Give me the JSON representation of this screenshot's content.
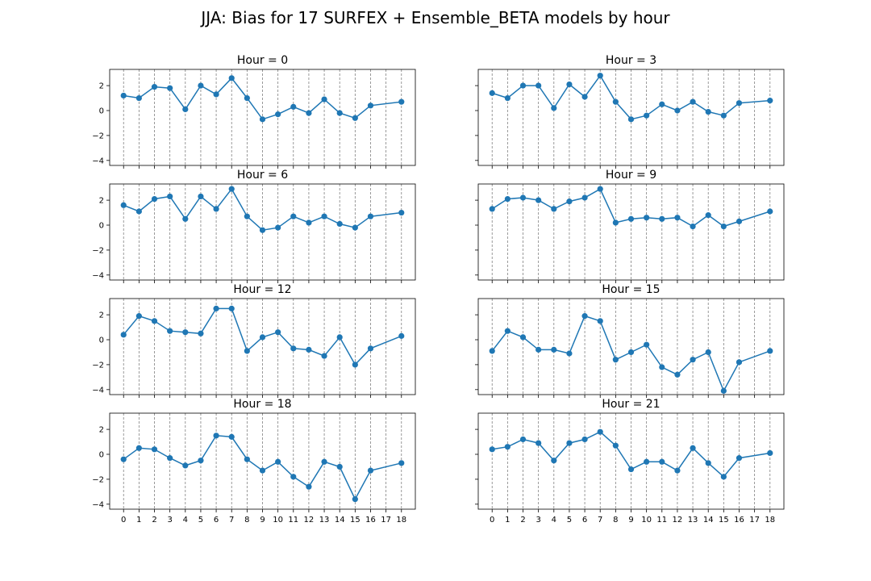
{
  "figure": {
    "title": "JJA: Bias for 17 SURFEX + Ensemble_BETA models by hour",
    "line_color": "#1f77b4",
    "vgrid_color": "#808080"
  },
  "chart_data": [
    {
      "type": "line",
      "title": "Hour = 0",
      "x": [
        0,
        1,
        2,
        3,
        4,
        5,
        6,
        7,
        8,
        9,
        10,
        11,
        12,
        13,
        14,
        15,
        16,
        18
      ],
      "values": [
        1.2,
        1.0,
        1.9,
        1.8,
        0.1,
        2.0,
        1.3,
        2.6,
        1.0,
        -0.7,
        -0.3,
        0.3,
        -0.2,
        0.9,
        -0.2,
        -0.6,
        0.4,
        0.7
      ],
      "xticks": [
        0,
        1,
        2,
        3,
        4,
        5,
        6,
        7,
        8,
        9,
        10,
        11,
        12,
        13,
        14,
        15,
        16,
        17,
        18
      ],
      "yticks": [
        -4,
        -2,
        0,
        2
      ],
      "xlim": [
        -0.9,
        18.9
      ],
      "ylim": [
        -4.4,
        3.3
      ],
      "grid": "vertical dashed at each x tick",
      "show_xticklabels": false,
      "show_yticklabels": true
    },
    {
      "type": "line",
      "title": "Hour = 3",
      "x": [
        0,
        1,
        2,
        3,
        4,
        5,
        6,
        7,
        8,
        9,
        10,
        11,
        12,
        13,
        14,
        15,
        16,
        18
      ],
      "values": [
        1.4,
        1.0,
        2.0,
        2.0,
        0.2,
        2.1,
        1.1,
        2.8,
        0.7,
        -0.7,
        -0.4,
        0.5,
        0.0,
        0.7,
        -0.1,
        -0.4,
        0.6,
        0.8
      ],
      "xticks": [
        0,
        1,
        2,
        3,
        4,
        5,
        6,
        7,
        8,
        9,
        10,
        11,
        12,
        13,
        14,
        15,
        16,
        17,
        18
      ],
      "yticks": [
        -4,
        -2,
        0,
        2
      ],
      "xlim": [
        -0.9,
        18.9
      ],
      "ylim": [
        -4.4,
        3.3
      ],
      "grid": "vertical dashed at each x tick",
      "show_xticklabels": false,
      "show_yticklabels": false
    },
    {
      "type": "line",
      "title": "Hour = 6",
      "x": [
        0,
        1,
        2,
        3,
        4,
        5,
        6,
        7,
        8,
        9,
        10,
        11,
        12,
        13,
        14,
        15,
        16,
        18
      ],
      "values": [
        1.6,
        1.1,
        2.1,
        2.3,
        0.5,
        2.3,
        1.3,
        2.9,
        0.7,
        -0.4,
        -0.2,
        0.7,
        0.2,
        0.7,
        0.1,
        -0.2,
        0.7,
        1.0
      ],
      "xticks": [
        0,
        1,
        2,
        3,
        4,
        5,
        6,
        7,
        8,
        9,
        10,
        11,
        12,
        13,
        14,
        15,
        16,
        17,
        18
      ],
      "yticks": [
        -4,
        -2,
        0,
        2
      ],
      "xlim": [
        -0.9,
        18.9
      ],
      "ylim": [
        -4.4,
        3.3
      ],
      "grid": "vertical dashed at each x tick",
      "show_xticklabels": false,
      "show_yticklabels": true
    },
    {
      "type": "line",
      "title": "Hour = 9",
      "x": [
        0,
        1,
        2,
        3,
        4,
        5,
        6,
        7,
        8,
        9,
        10,
        11,
        12,
        13,
        14,
        15,
        16,
        18
      ],
      "values": [
        1.3,
        2.1,
        2.2,
        2.0,
        1.3,
        1.9,
        2.2,
        2.9,
        0.2,
        0.5,
        0.6,
        0.5,
        0.6,
        -0.1,
        0.8,
        -0.1,
        0.3,
        1.1
      ],
      "xticks": [
        0,
        1,
        2,
        3,
        4,
        5,
        6,
        7,
        8,
        9,
        10,
        11,
        12,
        13,
        14,
        15,
        16,
        17,
        18
      ],
      "yticks": [
        -4,
        -2,
        0,
        2
      ],
      "xlim": [
        -0.9,
        18.9
      ],
      "ylim": [
        -4.4,
        3.3
      ],
      "grid": "vertical dashed at each x tick",
      "show_xticklabels": false,
      "show_yticklabels": false
    },
    {
      "type": "line",
      "title": "Hour = 12",
      "x": [
        0,
        1,
        2,
        3,
        4,
        5,
        6,
        7,
        8,
        9,
        10,
        11,
        12,
        13,
        14,
        15,
        16,
        18
      ],
      "values": [
        0.4,
        1.9,
        1.5,
        0.7,
        0.6,
        0.5,
        2.5,
        2.5,
        -0.9,
        0.2,
        0.6,
        -0.7,
        -0.8,
        -1.3,
        0.2,
        -2.0,
        -0.7,
        0.3
      ],
      "xticks": [
        0,
        1,
        2,
        3,
        4,
        5,
        6,
        7,
        8,
        9,
        10,
        11,
        12,
        13,
        14,
        15,
        16,
        17,
        18
      ],
      "yticks": [
        -4,
        -2,
        0,
        2
      ],
      "xlim": [
        -0.9,
        18.9
      ],
      "ylim": [
        -4.4,
        3.3
      ],
      "grid": "vertical dashed at each x tick",
      "show_xticklabels": false,
      "show_yticklabels": true
    },
    {
      "type": "line",
      "title": "Hour = 15",
      "x": [
        0,
        1,
        2,
        3,
        4,
        5,
        6,
        7,
        8,
        9,
        10,
        11,
        12,
        13,
        14,
        15,
        16,
        18
      ],
      "values": [
        -0.9,
        0.7,
        0.2,
        -0.8,
        -0.8,
        -1.1,
        1.9,
        1.5,
        -1.6,
        -1.0,
        -0.4,
        -2.2,
        -2.8,
        -1.6,
        -1.0,
        -4.1,
        -1.8,
        -0.9
      ],
      "xticks": [
        0,
        1,
        2,
        3,
        4,
        5,
        6,
        7,
        8,
        9,
        10,
        11,
        12,
        13,
        14,
        15,
        16,
        17,
        18
      ],
      "yticks": [
        -4,
        -2,
        0,
        2
      ],
      "xlim": [
        -0.9,
        18.9
      ],
      "ylim": [
        -4.4,
        3.3
      ],
      "grid": "vertical dashed at each x tick",
      "show_xticklabels": false,
      "show_yticklabels": false
    },
    {
      "type": "line",
      "title": "Hour = 18",
      "x": [
        0,
        1,
        2,
        3,
        4,
        5,
        6,
        7,
        8,
        9,
        10,
        11,
        12,
        13,
        14,
        15,
        16,
        18
      ],
      "values": [
        -0.4,
        0.5,
        0.4,
        -0.3,
        -0.9,
        -0.5,
        1.5,
        1.4,
        -0.4,
        -1.3,
        -0.6,
        -1.8,
        -2.6,
        -0.6,
        -1.0,
        -3.6,
        -1.3,
        -0.7
      ],
      "xticks": [
        0,
        1,
        2,
        3,
        4,
        5,
        6,
        7,
        8,
        9,
        10,
        11,
        12,
        13,
        14,
        15,
        16,
        17,
        18
      ],
      "yticks": [
        -4,
        -2,
        0,
        2
      ],
      "xlim": [
        -0.9,
        18.9
      ],
      "ylim": [
        -4.4,
        3.3
      ],
      "grid": "vertical dashed at each x tick",
      "show_xticklabels": true,
      "show_yticklabels": true
    },
    {
      "type": "line",
      "title": "Hour = 21",
      "x": [
        0,
        1,
        2,
        3,
        4,
        5,
        6,
        7,
        8,
        9,
        10,
        11,
        12,
        13,
        14,
        15,
        16,
        18
      ],
      "values": [
        0.4,
        0.6,
        1.2,
        0.9,
        -0.5,
        0.9,
        1.2,
        1.8,
        0.7,
        -1.2,
        -0.6,
        -0.6,
        -1.3,
        0.5,
        -0.7,
        -1.8,
        -0.3,
        0.1
      ],
      "xticks": [
        0,
        1,
        2,
        3,
        4,
        5,
        6,
        7,
        8,
        9,
        10,
        11,
        12,
        13,
        14,
        15,
        16,
        17,
        18
      ],
      "yticks": [
        -4,
        -2,
        0,
        2
      ],
      "xlim": [
        -0.9,
        18.9
      ],
      "ylim": [
        -4.4,
        3.3
      ],
      "grid": "vertical dashed at each x tick",
      "show_xticklabels": true,
      "show_yticklabels": false
    }
  ]
}
